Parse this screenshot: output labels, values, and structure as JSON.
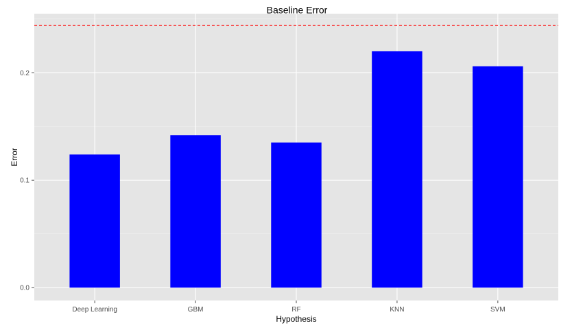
{
  "chart_data": {
    "type": "bar",
    "categories": [
      "Deep Learning",
      "GBM",
      "RF",
      "KNN",
      "SVM"
    ],
    "values": [
      0.124,
      0.142,
      0.135,
      0.22,
      0.206
    ],
    "xlabel": "Hypothesis",
    "ylabel": "Error",
    "ylim": [
      -0.012,
      0.255
    ],
    "yticks": [
      0.0,
      0.1,
      0.2
    ],
    "ytick_labels": [
      "0.0",
      "0.1",
      "0.2"
    ],
    "grid": true,
    "bar_color": "#0000ff",
    "panel_color": "#e5e5e5",
    "reference_line": {
      "y": 0.244,
      "label": "Baseline Error",
      "color": "#ff0000",
      "style": "dashed"
    }
  }
}
